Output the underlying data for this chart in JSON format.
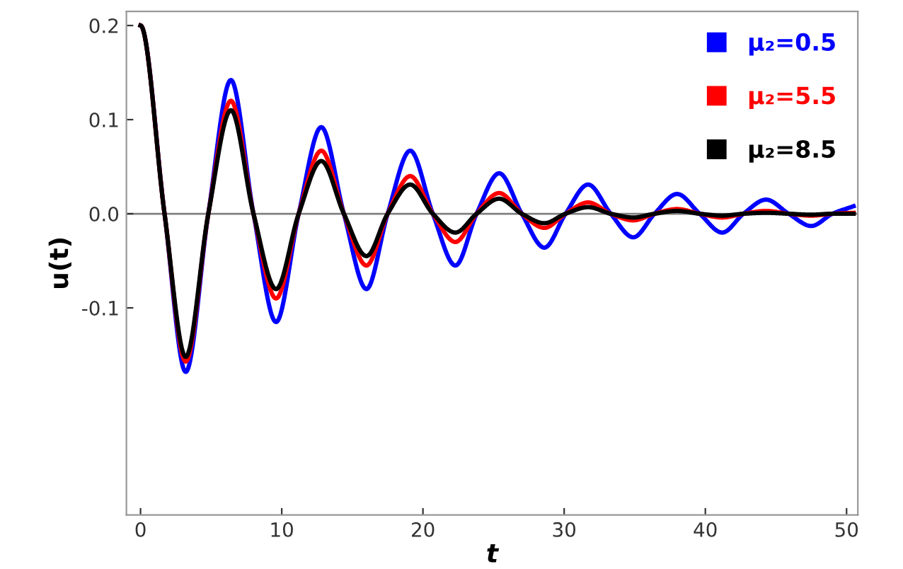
{
  "chart_data": {
    "type": "line",
    "xlabel": "t",
    "ylabel": "u(t)",
    "xlim": [
      -1,
      50.8
    ],
    "ylim": [
      -0.32,
      0.215
    ],
    "xticks": [
      0,
      10,
      20,
      30,
      40,
      50
    ],
    "yticks": [
      {
        "value": -0.1,
        "label": "-0.1"
      },
      {
        "value": 0,
        "label": "0.0"
      },
      {
        "value": 0.1,
        "label": "0.1"
      },
      {
        "value": 0.2,
        "label": "0.2"
      }
    ],
    "legend": "top right",
    "grid": false,
    "ref_lines": [
      {
        "axis": "y",
        "value": 0,
        "color": "#808080"
      }
    ],
    "x": [
      0,
      1.7,
      3.2,
      4.8,
      6.4,
      8.0,
      9.6,
      11.2,
      12.8,
      14.4,
      16.0,
      17.5,
      19.1,
      20.7,
      22.3,
      23.8,
      25.4,
      27.0,
      28.6,
      30.1,
      31.7,
      33.3,
      34.9,
      36.4,
      38.0,
      39.6,
      41.2,
      42.7,
      44.3,
      45.9,
      47.5,
      49.0,
      50.5
    ],
    "series": [
      {
        "name": "μ₂=0.5",
        "color": "#0000ff",
        "values": [
          0.2,
          0,
          -0.168,
          0,
          0.142,
          0,
          -0.115,
          0,
          0.092,
          0,
          -0.08,
          0,
          0.067,
          0,
          -0.055,
          0,
          0.043,
          0,
          -0.036,
          0,
          0.031,
          0,
          -0.025,
          0,
          0.021,
          0,
          -0.02,
          0,
          0.015,
          0,
          -0.013,
          0,
          0.008
        ]
      },
      {
        "name": "μ₂=5.5",
        "color": "#ff0000",
        "values": [
          0.2,
          0,
          -0.157,
          0,
          0.12,
          0,
          -0.09,
          0,
          0.067,
          0,
          -0.055,
          0,
          0.04,
          0,
          -0.03,
          0,
          0.022,
          0,
          -0.015,
          0,
          0.012,
          0,
          -0.007,
          0,
          0.005,
          0,
          -0.004,
          0,
          0.003,
          0,
          -0.002,
          0,
          0.001
        ]
      },
      {
        "name": "μ₂=8.5",
        "color": "#000000",
        "values": [
          0.2,
          0,
          -0.152,
          0,
          0.11,
          0,
          -0.08,
          0,
          0.056,
          0,
          -0.045,
          0,
          0.031,
          0,
          -0.02,
          0,
          0.016,
          0,
          -0.01,
          0,
          0.007,
          0,
          -0.004,
          0,
          0.003,
          0,
          -0.002,
          0,
          0.001,
          0,
          -0.001,
          0,
          0
        ]
      }
    ]
  }
}
